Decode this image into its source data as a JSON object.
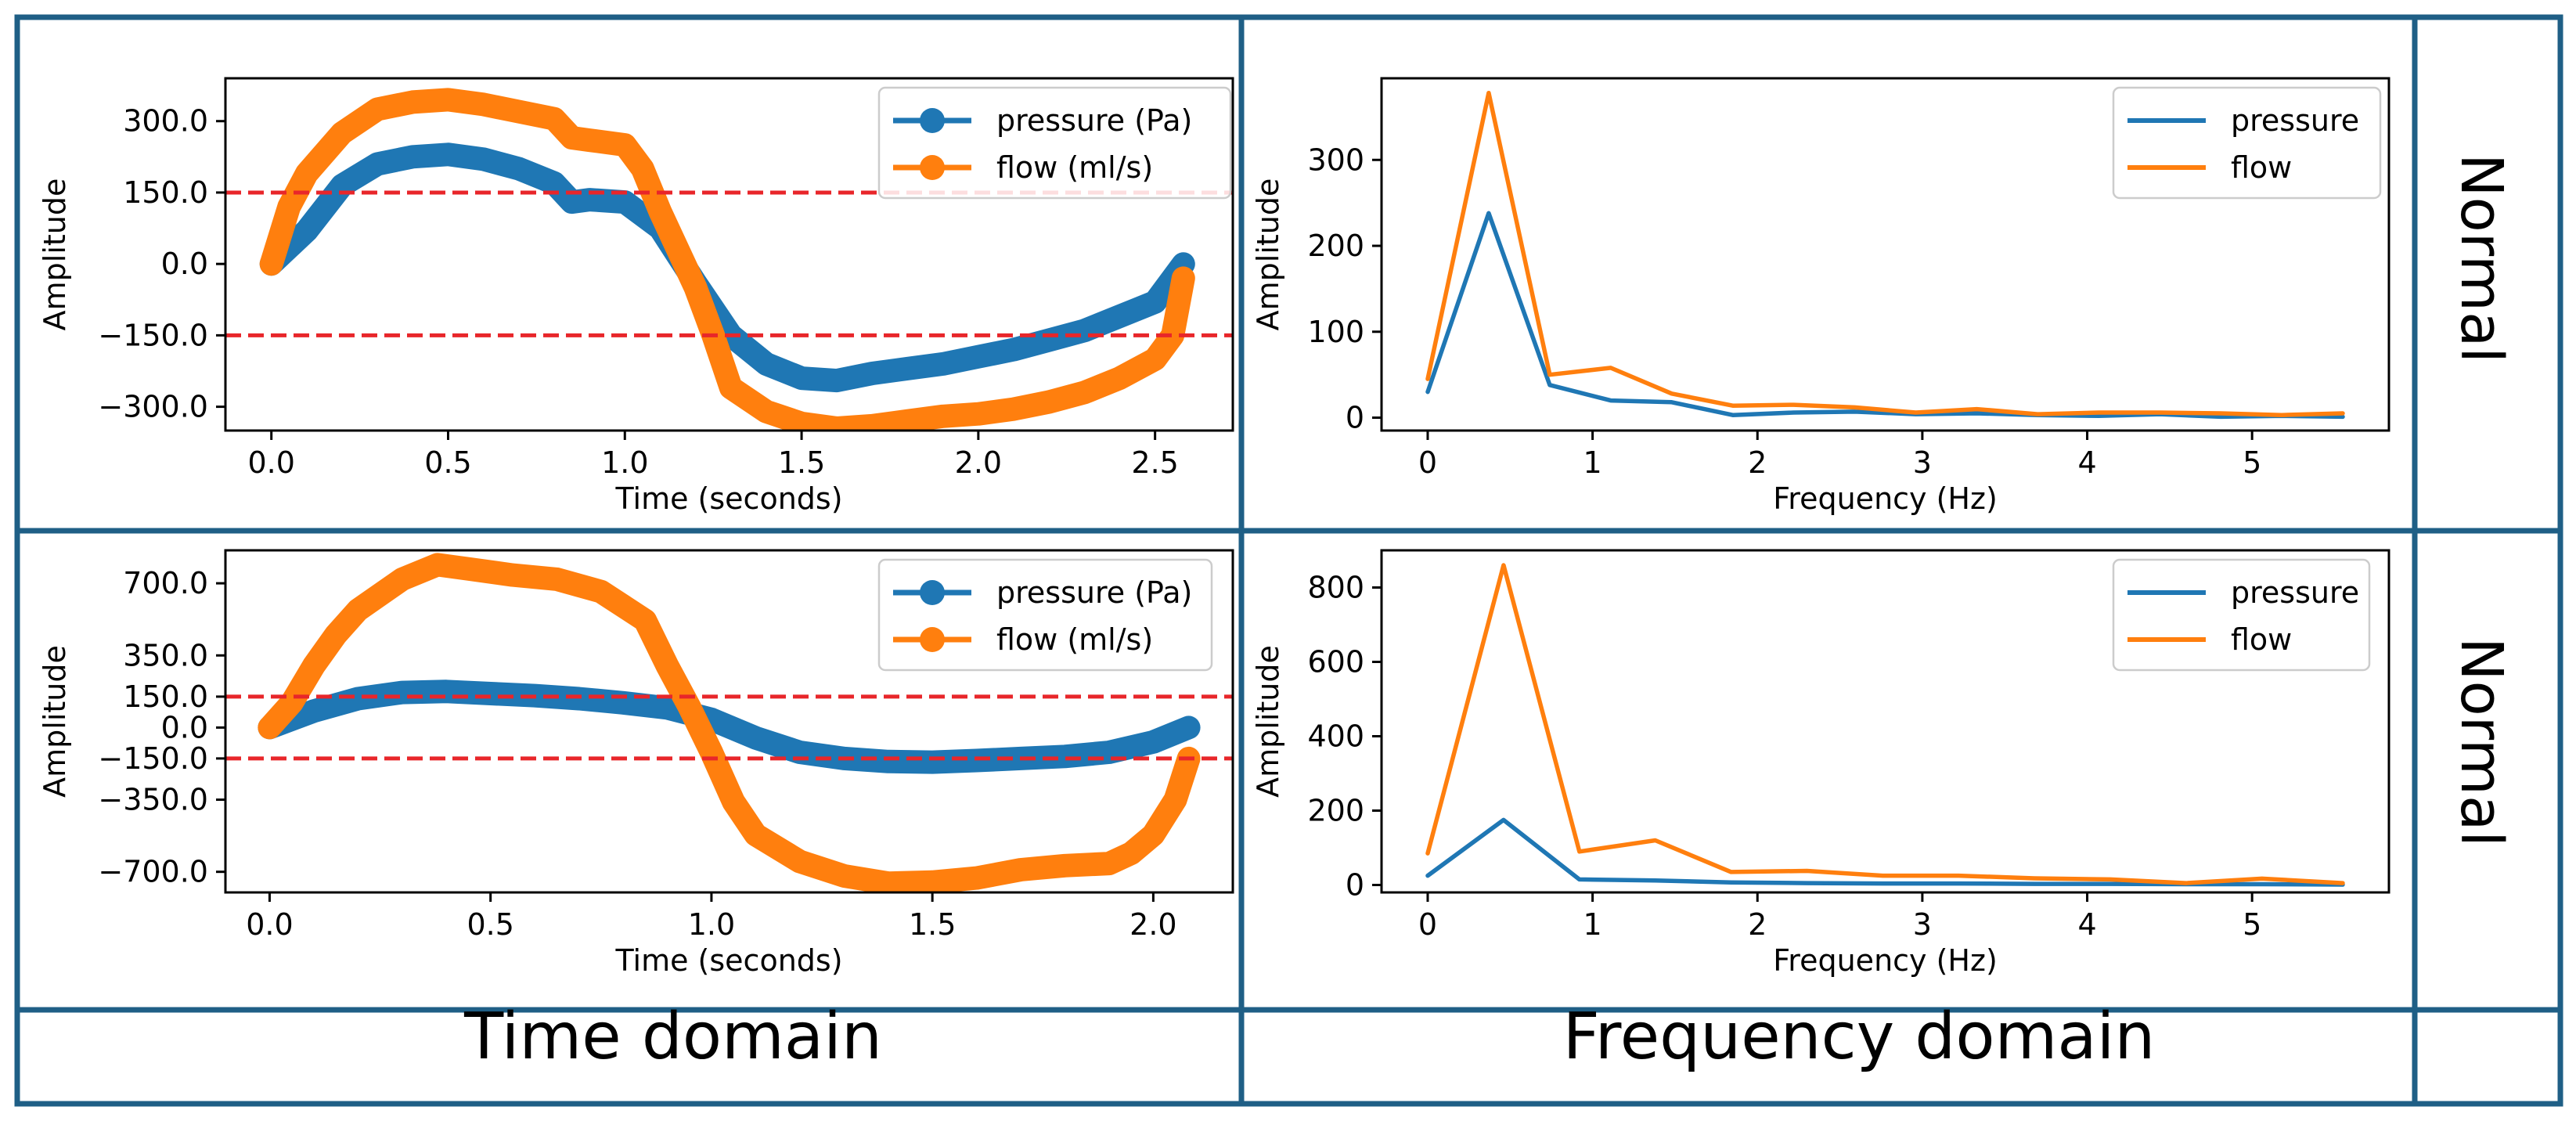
{
  "colors": {
    "frame": "#1f5f86",
    "pressure": "#1f77b4",
    "flow": "#ff7f0e",
    "threshold": "#e8262a",
    "axis": "#000000"
  },
  "row_labels": [
    "Normal",
    "Normal"
  ],
  "column_labels": [
    "Time domain",
    "Frequency domain"
  ],
  "chart_data": [
    {
      "id": "time-1",
      "type": "line",
      "xlabel": "Time (seconds)",
      "ylabel": "Amplitude",
      "xlim": [
        -0.13,
        2.72
      ],
      "ylim": [
        -350,
        390
      ],
      "xticks": [
        0.0,
        0.5,
        1.0,
        1.5,
        2.0,
        2.5
      ],
      "xtick_labels": [
        "0.0",
        "0.5",
        "1.0",
        "1.5",
        "2.0",
        "2.5"
      ],
      "yticks": [
        300,
        150,
        0,
        -150,
        -300
      ],
      "ytick_labels": [
        "300.0",
        "150.0",
        "0.0",
        "−150.0",
        "−300.0"
      ],
      "thresholds": [
        150,
        -150
      ],
      "legend": [
        "pressure (Pa)",
        "flow (ml/s)"
      ],
      "series": [
        {
          "name": "pressure (Pa)",
          "x": [
            0,
            0.1,
            0.2,
            0.3,
            0.4,
            0.5,
            0.6,
            0.7,
            0.8,
            0.85,
            0.9,
            1.0,
            1.1,
            1.2,
            1.3,
            1.4,
            1.5,
            1.6,
            1.7,
            1.8,
            1.9,
            2.0,
            2.1,
            2.2,
            2.3,
            2.4,
            2.5,
            2.58
          ],
          "y": [
            0,
            70,
            165,
            210,
            225,
            230,
            220,
            200,
            170,
            130,
            135,
            130,
            75,
            -40,
            -150,
            -210,
            -240,
            -245,
            -230,
            -220,
            -210,
            -195,
            -180,
            -160,
            -140,
            -110,
            -80,
            0
          ]
        },
        {
          "name": "flow (ml/s)",
          "x": [
            0,
            0.05,
            0.1,
            0.2,
            0.3,
            0.4,
            0.5,
            0.6,
            0.7,
            0.8,
            0.85,
            0.9,
            1.0,
            1.05,
            1.1,
            1.2,
            1.25,
            1.3,
            1.4,
            1.5,
            1.6,
            1.7,
            1.8,
            1.9,
            2.0,
            2.1,
            2.2,
            2.3,
            2.4,
            2.5,
            2.55,
            2.58
          ],
          "y": [
            0,
            120,
            190,
            275,
            325,
            340,
            345,
            335,
            320,
            305,
            265,
            260,
            250,
            200,
            110,
            -50,
            -150,
            -260,
            -310,
            -335,
            -345,
            -340,
            -330,
            -320,
            -315,
            -305,
            -290,
            -270,
            -240,
            -200,
            -150,
            -30
          ]
        }
      ]
    },
    {
      "id": "freq-1",
      "type": "line",
      "xlabel": "Frequency (Hz)",
      "ylabel": "Amplitude",
      "xlim": [
        -0.28,
        5.83
      ],
      "ylim": [
        -15,
        395
      ],
      "xticks": [
        0,
        1,
        2,
        3,
        4,
        5
      ],
      "xtick_labels": [
        "0",
        "1",
        "2",
        "3",
        "4",
        "5"
      ],
      "yticks": [
        300,
        200,
        100,
        0
      ],
      "ytick_labels": [
        "300",
        "200",
        "100",
        "0"
      ],
      "legend": [
        "pressure",
        "flow"
      ],
      "series": [
        {
          "name": "pressure",
          "x": [
            0,
            0.37,
            0.74,
            1.11,
            1.48,
            1.85,
            2.22,
            2.59,
            2.96,
            3.33,
            3.7,
            4.07,
            4.44,
            4.81,
            5.18,
            5.55
          ],
          "y": [
            30,
            238,
            38,
            20,
            18,
            3,
            6,
            7,
            4,
            5,
            3,
            2,
            4,
            1,
            2,
            1
          ]
        },
        {
          "name": "flow",
          "x": [
            0,
            0.37,
            0.74,
            1.11,
            1.48,
            1.85,
            2.22,
            2.59,
            2.96,
            3.33,
            3.7,
            4.07,
            4.44,
            4.81,
            5.18,
            5.55
          ],
          "y": [
            45,
            378,
            50,
            58,
            28,
            14,
            15,
            12,
            6,
            10,
            4,
            6,
            6,
            5,
            3,
            5
          ]
        }
      ]
    },
    {
      "id": "time-2",
      "type": "line",
      "xlabel": "Time (seconds)",
      "ylabel": "Amplitude",
      "xlim": [
        -0.1,
        2.18
      ],
      "ylim": [
        -800,
        860
      ],
      "xticks": [
        0.0,
        0.5,
        1.0,
        1.5,
        2.0
      ],
      "xtick_labels": [
        "0.0",
        "0.5",
        "1.0",
        "1.5",
        "2.0"
      ],
      "yticks": [
        700,
        350,
        150,
        0,
        -150,
        -350,
        -700
      ],
      "ytick_labels": [
        "700.0",
        "350.0",
        "150.0",
        "0.0",
        "−150.0",
        "−350.0",
        "−700.0"
      ],
      "thresholds": [
        150,
        -150
      ],
      "legend": [
        "pressure (Pa)",
        "flow (ml/s)"
      ],
      "series": [
        {
          "name": "pressure (Pa)",
          "x": [
            0,
            0.1,
            0.2,
            0.3,
            0.4,
            0.5,
            0.6,
            0.7,
            0.8,
            0.9,
            1.0,
            1.1,
            1.2,
            1.3,
            1.4,
            1.5,
            1.6,
            1.7,
            1.8,
            1.9,
            2.0,
            2.08
          ],
          "y": [
            0,
            80,
            140,
            170,
            175,
            165,
            155,
            140,
            120,
            95,
            40,
            -50,
            -120,
            -150,
            -165,
            -168,
            -160,
            -150,
            -140,
            -120,
            -70,
            0
          ]
        },
        {
          "name": "flow (ml/s)",
          "x": [
            0,
            0.05,
            0.1,
            0.15,
            0.2,
            0.3,
            0.38,
            0.45,
            0.55,
            0.65,
            0.75,
            0.8,
            0.85,
            0.9,
            0.95,
            1.0,
            1.05,
            1.1,
            1.2,
            1.3,
            1.4,
            1.5,
            1.6,
            1.7,
            1.8,
            1.9,
            1.95,
            2.0,
            2.05,
            2.08
          ],
          "y": [
            0,
            120,
            300,
            450,
            570,
            720,
            790,
            770,
            740,
            720,
            660,
            590,
            520,
            300,
            100,
            -120,
            -360,
            -520,
            -650,
            -720,
            -755,
            -750,
            -730,
            -690,
            -670,
            -660,
            -610,
            -520,
            -350,
            -150
          ]
        }
      ]
    },
    {
      "id": "freq-2",
      "type": "line",
      "xlabel": "Frequency (Hz)",
      "ylabel": "Amplitude",
      "xlim": [
        -0.28,
        5.83
      ],
      "ylim": [
        -20,
        900
      ],
      "xticks": [
        0,
        1,
        2,
        3,
        4,
        5
      ],
      "xtick_labels": [
        "0",
        "1",
        "2",
        "3",
        "4",
        "5"
      ],
      "yticks": [
        800,
        600,
        400,
        200,
        0
      ],
      "ytick_labels": [
        "800",
        "600",
        "400",
        "200",
        "0"
      ],
      "legend": [
        "pressure",
        "flow"
      ],
      "series": [
        {
          "name": "pressure",
          "x": [
            0,
            0.46,
            0.92,
            1.38,
            1.84,
            2.3,
            2.76,
            3.22,
            3.68,
            4.14,
            4.6,
            5.06,
            5.55
          ],
          "y": [
            25,
            175,
            15,
            12,
            7,
            5,
            4,
            4,
            3,
            3,
            2,
            2,
            1
          ]
        },
        {
          "name": "flow",
          "x": [
            0,
            0.46,
            0.92,
            1.38,
            1.84,
            2.3,
            2.76,
            3.22,
            3.68,
            4.14,
            4.6,
            5.06,
            5.55
          ],
          "y": [
            85,
            860,
            90,
            120,
            35,
            38,
            25,
            25,
            18,
            15,
            5,
            17,
            5
          ]
        }
      ]
    }
  ]
}
